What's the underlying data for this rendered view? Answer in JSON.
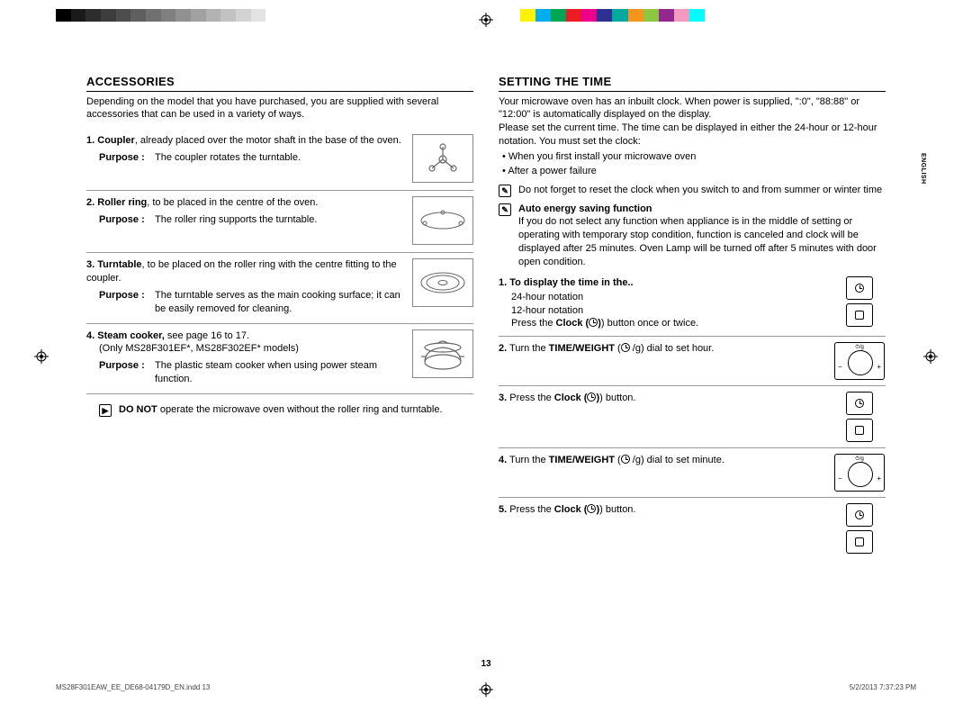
{
  "page_number": "13",
  "language_tab": "ENGLISH",
  "footer": {
    "filename": "MS28F301EAW_EE_DE68-04179D_EN.indd   13",
    "timestamp": "5/2/2013   7:37:23 PM"
  },
  "colorbar_left": [
    "#000000",
    "#1a1a1a",
    "#2d2d2d",
    "#3d3d3d",
    "#4d4d4d",
    "#5f5f5f",
    "#707070",
    "#808080",
    "#919191",
    "#a1a1a1",
    "#b2b2b2",
    "#c2c2c2",
    "#d3d3d3",
    "#e3e3e3",
    "#ffffff"
  ],
  "colorbar_right": [
    "#fff200",
    "#00aeef",
    "#00a651",
    "#ed1c24",
    "#ec008c",
    "#2e3192",
    "#00a99d",
    "#f7941d",
    "#8dc63f",
    "#92278f",
    "#f49ac1",
    "#00ffff",
    "#ffffff"
  ],
  "left_col": {
    "heading": "ACCESSORIES",
    "intro": "Depending on the model that you have purchased, you are supplied with several accessories that can be used in a variety of ways.",
    "purpose_label": "Purpose :",
    "items": [
      {
        "num": "1.",
        "title": "Coupler",
        "desc": ", already placed over the motor shaft in the base of the oven.",
        "purpose": "The coupler rotates the turntable."
      },
      {
        "num": "2.",
        "title": "Roller ring",
        "desc": ", to be placed in the centre of the oven.",
        "purpose": "The roller ring supports the turntable."
      },
      {
        "num": "3.",
        "title": "Turntable",
        "desc": ", to be placed on the roller ring with the centre fitting to the coupler.",
        "purpose": "The turntable serves as the main cooking surface; it can be easily removed for cleaning."
      },
      {
        "num": "4.",
        "title": "Steam cooker,",
        "desc": " see page 16 to 17.",
        "note": "(Only MS28F301EF*, MS28F302EF* models)",
        "purpose": "The plastic steam cooker when using power steam function."
      }
    ],
    "donot_bold": "DO NOT",
    "donot_rest": " operate the microwave oven without the roller ring and turntable."
  },
  "right_col": {
    "heading": "SETTING THE TIME",
    "intro1": "Your microwave oven has an inbuilt clock. When power is supplied, \":0\", \"88:88\" or \"12:00\" is automatically displayed on the display.",
    "intro2": "Please set the current time. The time can be displayed in either the 24-hour or 12-hour notation. You must set the clock:",
    "bullets": [
      "When you first install your microwave oven",
      "After a power failure"
    ],
    "note1": "Do not forget to reset the clock when you switch to and from summer or winter time",
    "note2_title": "Auto energy saving function",
    "note2_body": "If you do not select any function when appliance is in the middle of setting or operating with temporary stop condition, function is canceled and clock will be displayed after 25 minutes. Oven Lamp will be turned off after 5 minutes with door open condition.",
    "steps": [
      {
        "num": "1.",
        "title_bold": "To display the time in the..",
        "lines": [
          "24-hour notation",
          "12-hour notation"
        ],
        "tail_a": "Press the ",
        "tail_bold": "Clock (",
        "tail_b": ") button once or twice.",
        "img": "clock_pair"
      },
      {
        "num": "2.",
        "body_a": "Turn the ",
        "body_bold": "TIME/WEIGHT",
        "body_b": " (",
        "body_c": ") dial to set hour.",
        "icon_text": "/g",
        "img": "dial"
      },
      {
        "num": "3.",
        "body_a": "Press the ",
        "body_bold": "Clock (",
        "body_b": ") button.",
        "img": "clock_pair"
      },
      {
        "num": "4.",
        "body_a": "Turn the ",
        "body_bold": "TIME/WEIGHT",
        "body_b": " (",
        "body_c": ") dial to set minute.",
        "icon_text": "/g",
        "img": "dial"
      },
      {
        "num": "5.",
        "body_a": "Press the ",
        "body_bold": "Clock (",
        "body_b": ") button.",
        "img": "clock_pair"
      }
    ]
  }
}
